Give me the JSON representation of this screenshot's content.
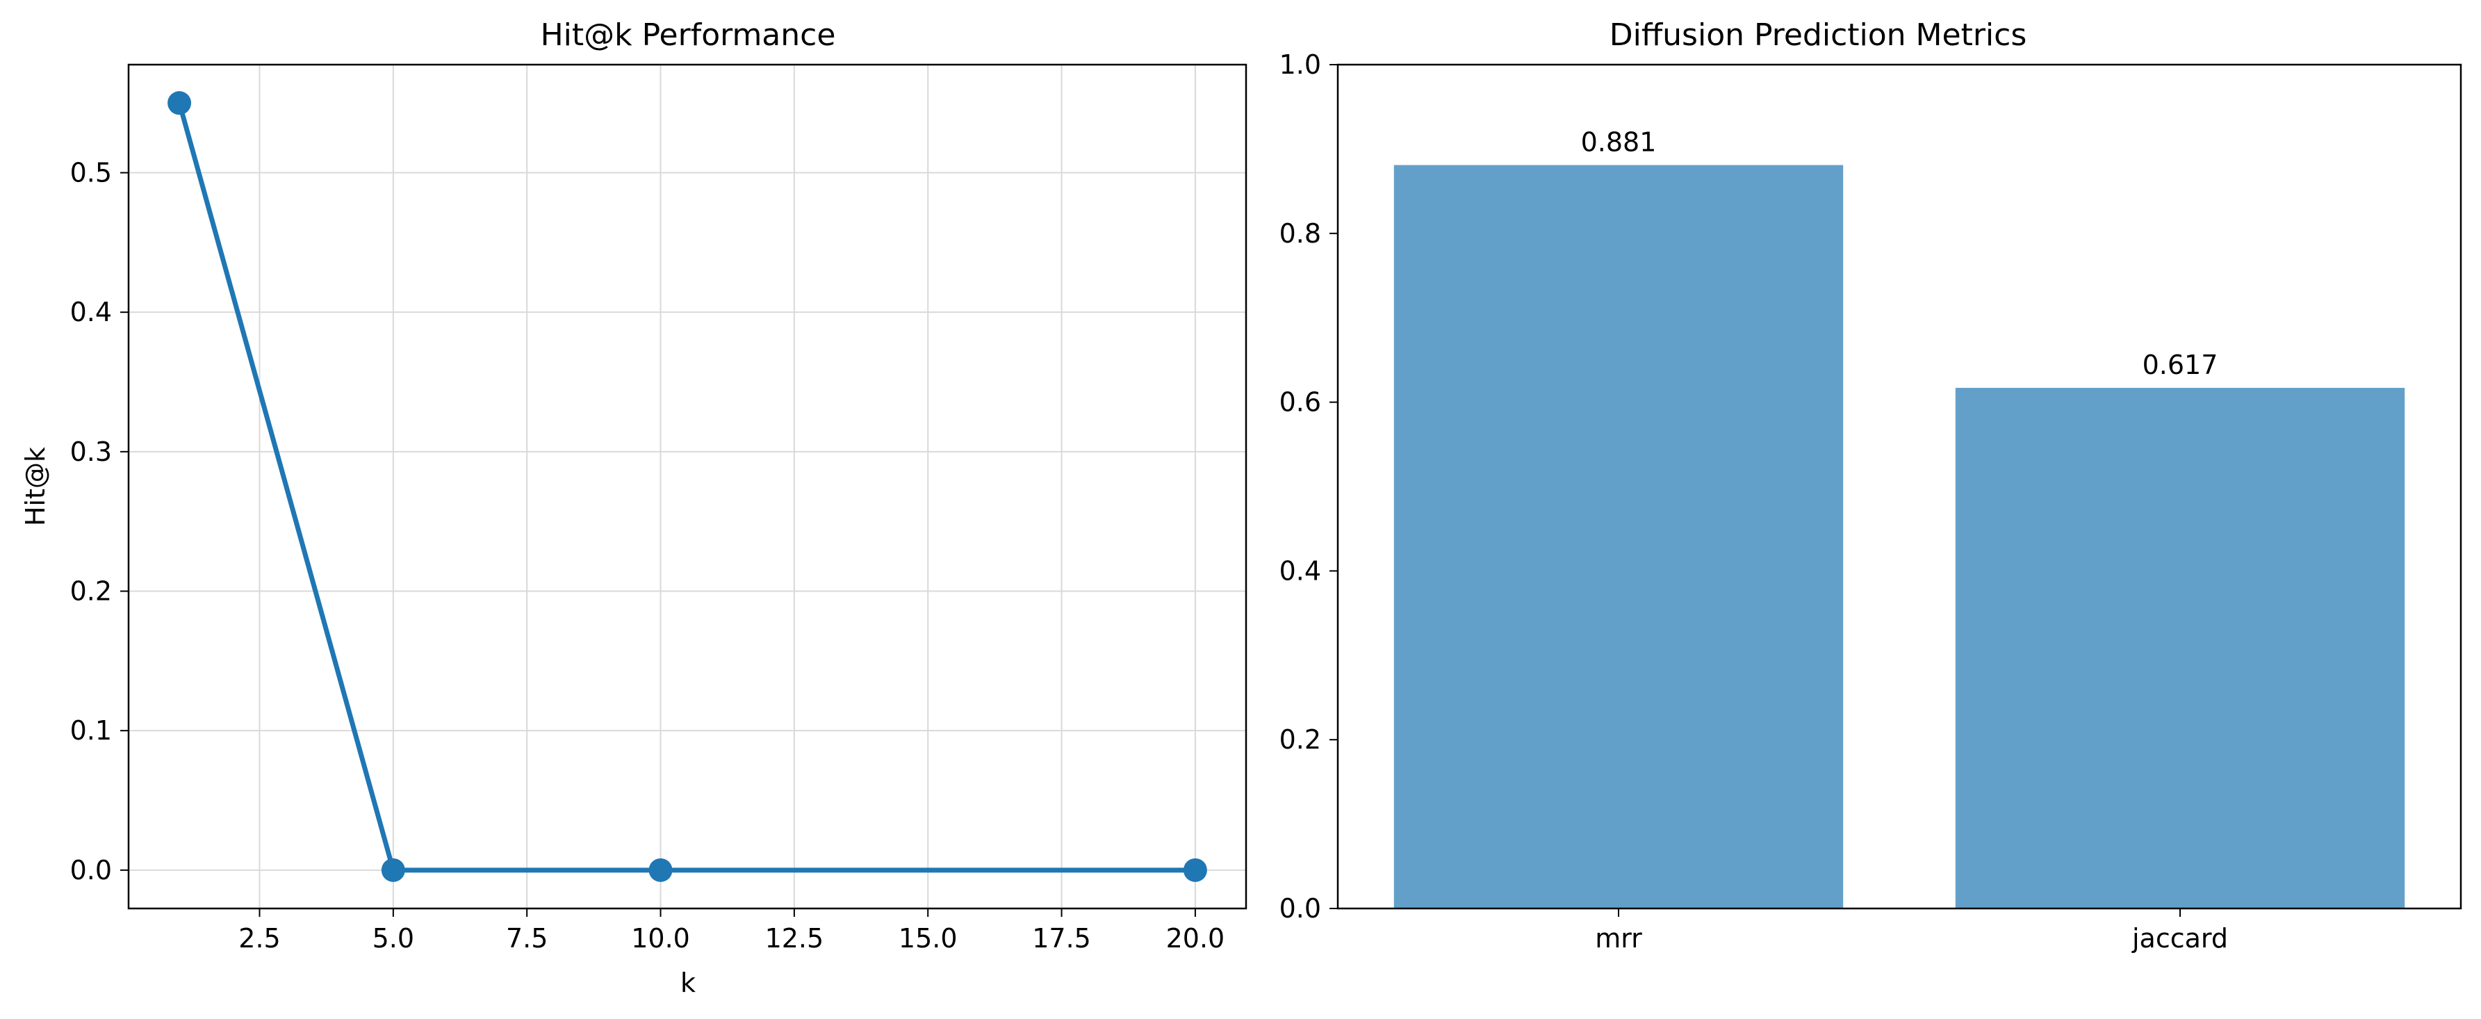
{
  "chart_data": [
    {
      "type": "line",
      "title": "Hit@k Performance",
      "xlabel": "k",
      "ylabel": "Hit@k",
      "x": [
        1,
        5,
        10,
        20
      ],
      "series": [
        {
          "values": [
            0.55,
            0.0,
            0.0,
            0.0
          ]
        }
      ],
      "xlim": [
        0.05,
        20.95
      ],
      "ylim": [
        -0.0275,
        0.5775
      ],
      "xticks": [
        "2.5",
        "5.0",
        "7.5",
        "10.0",
        "12.5",
        "15.0",
        "17.5",
        "20.0"
      ],
      "yticks": [
        "0.0",
        "0.1",
        "0.2",
        "0.3",
        "0.4",
        "0.5"
      ],
      "grid": true,
      "color": "#1f77b4"
    },
    {
      "type": "bar",
      "title": "Diffusion Prediction Metrics",
      "categories": [
        "mrr",
        "jaccard"
      ],
      "values": [
        0.881,
        0.617
      ],
      "value_labels": [
        "0.881",
        "0.617"
      ],
      "ylim": [
        0,
        1.0
      ],
      "yticks": [
        "0.0",
        "0.2",
        "0.4",
        "0.6",
        "0.8",
        "1.0"
      ],
      "grid": false,
      "color": "#1f77b4"
    }
  ]
}
